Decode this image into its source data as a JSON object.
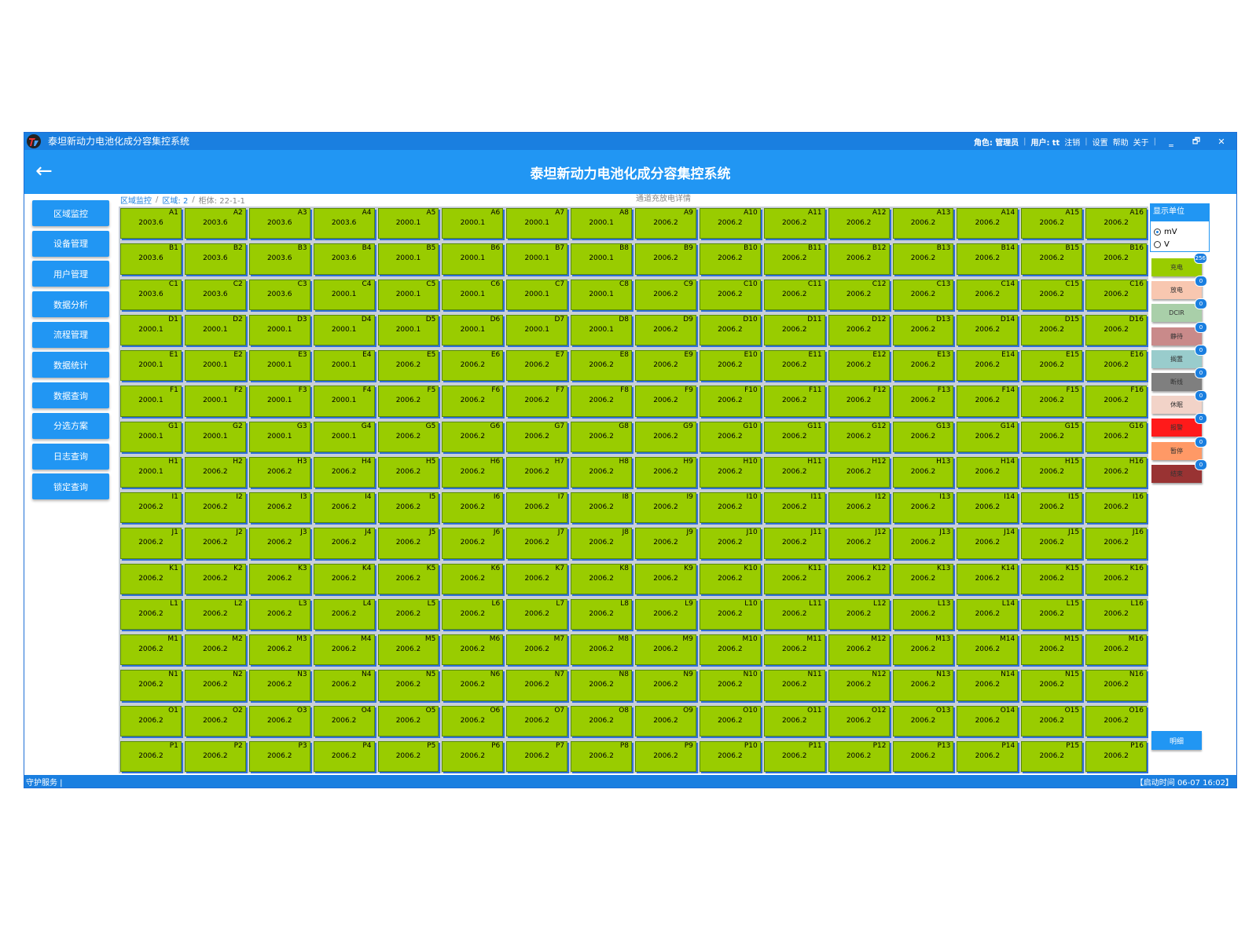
{
  "titlebar": {
    "app_title": "泰坦新动力电池化成分容集控系统",
    "role_label": "角色:",
    "role_value": "管理员",
    "user_label": "用户:",
    "user_value": "tt",
    "logout": "注销",
    "settings": "设置",
    "help": "帮助",
    "about": "关于",
    "minimize": "‗",
    "restore": "🗗",
    "close": "✕"
  },
  "header": {
    "back_icon": "←",
    "title": "泰坦新动力电池化成分容集控系统"
  },
  "sidebar": {
    "items": [
      {
        "label": "区域监控"
      },
      {
        "label": "设备管理"
      },
      {
        "label": "用户管理"
      },
      {
        "label": "数据分析"
      },
      {
        "label": "流程管理"
      },
      {
        "label": "数据统计"
      },
      {
        "label": "数据查询"
      },
      {
        "label": "分选方案"
      },
      {
        "label": "日志查询"
      },
      {
        "label": "锁定查询"
      }
    ]
  },
  "breadcrumb": {
    "home": "区域监控",
    "area_label": "区域:",
    "area_value": "2",
    "cabinet_label": "柜体:",
    "cabinet_value": "22-1-1"
  },
  "content": {
    "center_title": "通道充放电详情"
  },
  "channels": {
    "rows": [
      "A",
      "B",
      "C",
      "D",
      "E",
      "F",
      "G",
      "H",
      "I",
      "J",
      "K",
      "L",
      "M",
      "N",
      "O",
      "P"
    ],
    "values": [
      [
        "2003.6",
        "2003.6",
        "2003.6",
        "2003.6",
        "2000.1",
        "2000.1",
        "2000.1",
        "2000.1",
        "2006.2",
        "2006.2",
        "2006.2",
        "2006.2",
        "2006.2",
        "2006.2",
        "2006.2",
        "2006.2"
      ],
      [
        "2003.6",
        "2003.6",
        "2003.6",
        "2003.6",
        "2000.1",
        "2000.1",
        "2000.1",
        "2000.1",
        "2006.2",
        "2006.2",
        "2006.2",
        "2006.2",
        "2006.2",
        "2006.2",
        "2006.2",
        "2006.2"
      ],
      [
        "2003.6",
        "2003.6",
        "2003.6",
        "2000.1",
        "2000.1",
        "2000.1",
        "2000.1",
        "2000.1",
        "2006.2",
        "2006.2",
        "2006.2",
        "2006.2",
        "2006.2",
        "2006.2",
        "2006.2",
        "2006.2"
      ],
      [
        "2000.1",
        "2000.1",
        "2000.1",
        "2000.1",
        "2000.1",
        "2000.1",
        "2000.1",
        "2000.1",
        "2006.2",
        "2006.2",
        "2006.2",
        "2006.2",
        "2006.2",
        "2006.2",
        "2006.2",
        "2006.2"
      ],
      [
        "2000.1",
        "2000.1",
        "2000.1",
        "2000.1",
        "2006.2",
        "2006.2",
        "2006.2",
        "2006.2",
        "2006.2",
        "2006.2",
        "2006.2",
        "2006.2",
        "2006.2",
        "2006.2",
        "2006.2",
        "2006.2"
      ],
      [
        "2000.1",
        "2000.1",
        "2000.1",
        "2000.1",
        "2006.2",
        "2006.2",
        "2006.2",
        "2006.2",
        "2006.2",
        "2006.2",
        "2006.2",
        "2006.2",
        "2006.2",
        "2006.2",
        "2006.2",
        "2006.2"
      ],
      [
        "2000.1",
        "2000.1",
        "2000.1",
        "2000.1",
        "2006.2",
        "2006.2",
        "2006.2",
        "2006.2",
        "2006.2",
        "2006.2",
        "2006.2",
        "2006.2",
        "2006.2",
        "2006.2",
        "2006.2",
        "2006.2"
      ],
      [
        "2000.1",
        "2006.2",
        "2006.2",
        "2006.2",
        "2006.2",
        "2006.2",
        "2006.2",
        "2006.2",
        "2006.2",
        "2006.2",
        "2006.2",
        "2006.2",
        "2006.2",
        "2006.2",
        "2006.2",
        "2006.2"
      ],
      [
        "2006.2",
        "2006.2",
        "2006.2",
        "2006.2",
        "2006.2",
        "2006.2",
        "2006.2",
        "2006.2",
        "2006.2",
        "2006.2",
        "2006.2",
        "2006.2",
        "2006.2",
        "2006.2",
        "2006.2",
        "2006.2"
      ],
      [
        "2006.2",
        "2006.2",
        "2006.2",
        "2006.2",
        "2006.2",
        "2006.2",
        "2006.2",
        "2006.2",
        "2006.2",
        "2006.2",
        "2006.2",
        "2006.2",
        "2006.2",
        "2006.2",
        "2006.2",
        "2006.2"
      ],
      [
        "2006.2",
        "2006.2",
        "2006.2",
        "2006.2",
        "2006.2",
        "2006.2",
        "2006.2",
        "2006.2",
        "2006.2",
        "2006.2",
        "2006.2",
        "2006.2",
        "2006.2",
        "2006.2",
        "2006.2",
        "2006.2"
      ],
      [
        "2006.2",
        "2006.2",
        "2006.2",
        "2006.2",
        "2006.2",
        "2006.2",
        "2006.2",
        "2006.2",
        "2006.2",
        "2006.2",
        "2006.2",
        "2006.2",
        "2006.2",
        "2006.2",
        "2006.2",
        "2006.2"
      ],
      [
        "2006.2",
        "2006.2",
        "2006.2",
        "2006.2",
        "2006.2",
        "2006.2",
        "2006.2",
        "2006.2",
        "2006.2",
        "2006.2",
        "2006.2",
        "2006.2",
        "2006.2",
        "2006.2",
        "2006.2",
        "2006.2"
      ],
      [
        "2006.2",
        "2006.2",
        "2006.2",
        "2006.2",
        "2006.2",
        "2006.2",
        "2006.2",
        "2006.2",
        "2006.2",
        "2006.2",
        "2006.2",
        "2006.2",
        "2006.2",
        "2006.2",
        "2006.2",
        "2006.2"
      ],
      [
        "2006.2",
        "2006.2",
        "2006.2",
        "2006.2",
        "2006.2",
        "2006.2",
        "2006.2",
        "2006.2",
        "2006.2",
        "2006.2",
        "2006.2",
        "2006.2",
        "2006.2",
        "2006.2",
        "2006.2",
        "2006.2"
      ],
      [
        "2006.2",
        "2006.2",
        "2006.2",
        "2006.2",
        "2006.2",
        "2006.2",
        "2006.2",
        "2006.2",
        "2006.2",
        "2006.2",
        "2006.2",
        "2006.2",
        "2006.2",
        "2006.2",
        "2006.2",
        "2006.2"
      ]
    ],
    "cell_color": "#99cc00"
  },
  "right_panel": {
    "unit_title": "显示单位",
    "units": [
      {
        "label": "mV",
        "selected": true
      },
      {
        "label": "V",
        "selected": false
      }
    ],
    "legend": [
      {
        "label": "充电",
        "count": "256",
        "color": "#99cc00"
      },
      {
        "label": "放电",
        "count": "0",
        "color": "#f8c7b0"
      },
      {
        "label": "DCIR",
        "count": "0",
        "color": "#a9cfa9"
      },
      {
        "label": "静待",
        "count": "0",
        "color": "#c98a8a"
      },
      {
        "label": "搁置",
        "count": "0",
        "color": "#99cccc"
      },
      {
        "label": "断线",
        "count": "0",
        "color": "#7f7f7f"
      },
      {
        "label": "休眠",
        "count": "0",
        "color": "#f2d3c8"
      },
      {
        "label": "报警",
        "count": "0",
        "color": "#ff1a1a"
      },
      {
        "label": "暂停",
        "count": "0",
        "color": "#ff9966"
      },
      {
        "label": "结束",
        "count": "0",
        "color": "#993333"
      }
    ],
    "detail_button": "明细"
  },
  "statusbar": {
    "left": "守护服务",
    "right": "【启动时间 06-07 16:02】"
  }
}
